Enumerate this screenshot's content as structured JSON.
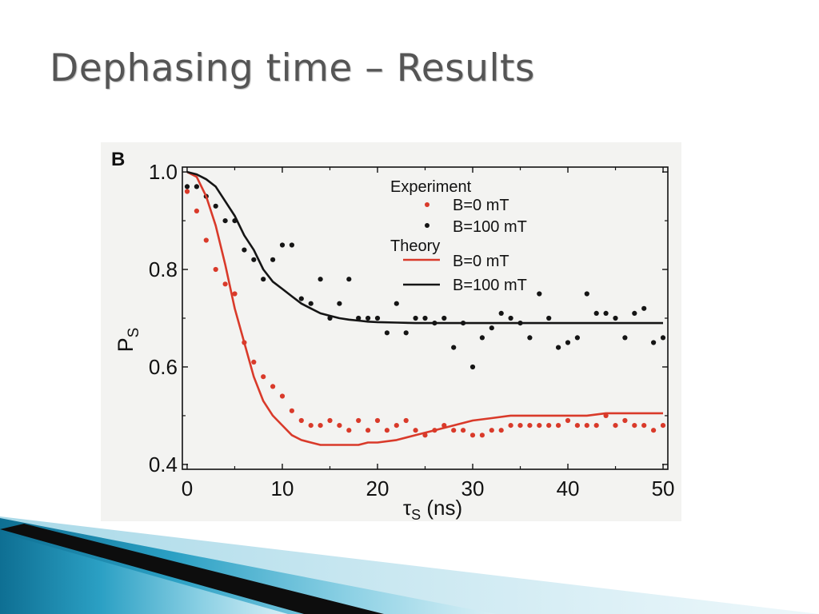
{
  "slide": {
    "title": "Dephasing time – Results"
  },
  "chart_data": {
    "type": "scatter",
    "panel_label": "B",
    "xlabel": "τS (ns)",
    "xlabel_main": "τ",
    "xlabel_sub": "S",
    "xlabel_unit": " (ns)",
    "ylabel_main": "P",
    "ylabel_sub": "S",
    "xlim": [
      -0.5,
      50.5
    ],
    "ylim": [
      0.39,
      1.01
    ],
    "x_ticks": [
      0,
      10,
      20,
      30,
      40,
      50
    ],
    "x_tick_labels": [
      "0",
      "10",
      "20",
      "30",
      "40",
      "50"
    ],
    "y_ticks": [
      0.4,
      0.6,
      0.8,
      1.0
    ],
    "y_tick_labels": [
      "0.4",
      "0.6",
      "0.8",
      "1.0"
    ],
    "grid": false,
    "legend": {
      "placement": "top-right",
      "experiment_heading": "Experiment",
      "theory_heading": "Theory",
      "entries": [
        {
          "group": "experiment",
          "label": "B=0 mT",
          "color": "#d93a2a"
        },
        {
          "group": "experiment",
          "label": "B=100 mT",
          "color": "#151515"
        },
        {
          "group": "theory",
          "label": "B=0 mT",
          "color": "#d93a2a"
        },
        {
          "group": "theory",
          "label": "B=100 mT",
          "color": "#151515"
        }
      ]
    },
    "series": [
      {
        "name": "Experiment B=0 mT",
        "kind": "points",
        "color": "#d93a2a",
        "x": [
          0,
          1,
          2,
          3,
          4,
          5,
          6,
          7,
          8,
          9,
          10,
          11,
          12,
          13,
          14,
          15,
          16,
          17,
          18,
          19,
          20,
          21,
          22,
          23,
          24,
          25,
          26,
          27,
          28,
          29,
          30,
          31,
          32,
          33,
          34,
          35,
          36,
          37,
          38,
          39,
          40,
          41,
          42,
          43,
          44,
          45,
          46,
          47,
          48,
          49,
          50
        ],
        "y": [
          0.96,
          0.92,
          0.86,
          0.8,
          0.77,
          0.75,
          0.65,
          0.61,
          0.58,
          0.56,
          0.54,
          0.51,
          0.49,
          0.48,
          0.48,
          0.49,
          0.48,
          0.47,
          0.49,
          0.47,
          0.49,
          0.47,
          0.48,
          0.49,
          0.47,
          0.46,
          0.47,
          0.48,
          0.47,
          0.47,
          0.46,
          0.46,
          0.47,
          0.47,
          0.48,
          0.48,
          0.48,
          0.48,
          0.48,
          0.48,
          0.49,
          0.48,
          0.48,
          0.48,
          0.5,
          0.48,
          0.49,
          0.48,
          0.48,
          0.47,
          0.48
        ]
      },
      {
        "name": "Experiment B=100 mT",
        "kind": "points",
        "color": "#151515",
        "x": [
          0,
          1,
          2,
          3,
          4,
          5,
          6,
          7,
          8,
          9,
          10,
          11,
          12,
          13,
          14,
          15,
          16,
          17,
          18,
          19,
          20,
          21,
          22,
          23,
          24,
          25,
          26,
          27,
          28,
          29,
          30,
          31,
          32,
          33,
          34,
          35,
          36,
          37,
          38,
          39,
          40,
          41,
          42,
          43,
          44,
          45,
          46,
          47,
          48,
          49,
          50
        ],
        "y": [
          0.97,
          0.97,
          0.95,
          0.93,
          0.9,
          0.9,
          0.84,
          0.82,
          0.78,
          0.82,
          0.85,
          0.85,
          0.74,
          0.73,
          0.78,
          0.7,
          0.73,
          0.78,
          0.7,
          0.7,
          0.7,
          0.67,
          0.73,
          0.67,
          0.7,
          0.7,
          0.69,
          0.7,
          0.64,
          0.69,
          0.6,
          0.66,
          0.68,
          0.71,
          0.7,
          0.69,
          0.66,
          0.75,
          0.7,
          0.64,
          0.65,
          0.66,
          0.75,
          0.71,
          0.71,
          0.7,
          0.66,
          0.71,
          0.72,
          0.65,
          0.66
        ]
      },
      {
        "name": "Theory B=0 mT",
        "kind": "curve",
        "color": "#d93a2a",
        "x": [
          0,
          1,
          2,
          3,
          4,
          5,
          6,
          7,
          8,
          9,
          10,
          11,
          12,
          13,
          14,
          15,
          16,
          17,
          18,
          19,
          20,
          22,
          24,
          26,
          28,
          30,
          32,
          34,
          36,
          38,
          40,
          42,
          44,
          46,
          48,
          50
        ],
        "y": [
          1.0,
          0.99,
          0.95,
          0.89,
          0.81,
          0.72,
          0.65,
          0.58,
          0.53,
          0.5,
          0.48,
          0.46,
          0.45,
          0.445,
          0.44,
          0.44,
          0.44,
          0.44,
          0.44,
          0.445,
          0.445,
          0.45,
          0.46,
          0.47,
          0.48,
          0.49,
          0.495,
          0.5,
          0.5,
          0.5,
          0.5,
          0.5,
          0.505,
          0.505,
          0.505,
          0.505
        ]
      },
      {
        "name": "Theory B=100 mT",
        "kind": "curve",
        "color": "#151515",
        "x": [
          0,
          1,
          2,
          3,
          4,
          5,
          6,
          7,
          8,
          9,
          10,
          11,
          12,
          13,
          14,
          15,
          16,
          17,
          18,
          19,
          20,
          22,
          24,
          26,
          28,
          30,
          35,
          40,
          45,
          50
        ],
        "y": [
          1.0,
          0.995,
          0.985,
          0.97,
          0.94,
          0.91,
          0.87,
          0.84,
          0.8,
          0.775,
          0.76,
          0.745,
          0.73,
          0.72,
          0.71,
          0.705,
          0.7,
          0.697,
          0.695,
          0.693,
          0.692,
          0.691,
          0.69,
          0.69,
          0.69,
          0.69,
          0.69,
          0.69,
          0.69,
          0.69
        ]
      }
    ]
  }
}
